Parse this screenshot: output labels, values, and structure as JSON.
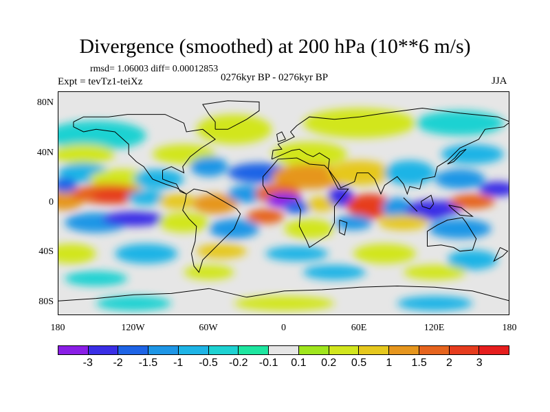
{
  "title": "Divergence (smoothed) at 200 hPa (10**6 m/s)",
  "stats": "rmsd= 1.06003 diff= 0.00012853",
  "experiment": "Expt = tevTz1-teiXz",
  "period": "0276kyr BP - 0276kyr BP",
  "season": "JJA",
  "lat_ticks": [
    "80N",
    "40N",
    "0",
    "40S",
    "80S"
  ],
  "lon_ticks": [
    "180",
    "120W",
    "60W",
    "0",
    "60E",
    "120E",
    "180"
  ],
  "colorbar": {
    "labels": [
      "-3",
      "-2",
      "-1.5",
      "-1",
      "-0.5",
      "-0.2",
      "-0.1",
      "0.1",
      "0.2",
      "0.5",
      "1",
      "1.5",
      "2",
      "3"
    ],
    "colors": [
      "#8a1ee6",
      "#3a2ee6",
      "#1e64e6",
      "#1e96e6",
      "#1eb4e6",
      "#1ed2d2",
      "#1ee6a0",
      "#e6e6e6",
      "#a0e61e",
      "#d2e61e",
      "#e6c81e",
      "#e6961e",
      "#e6641e",
      "#e63c1e",
      "#e61e1e"
    ]
  },
  "chart_data": {
    "type": "heatmap",
    "title": "Divergence (smoothed) at 200 hPa (10**6 m/s)",
    "projection": "cylindrical equidistant",
    "lon_range": [
      -180,
      180
    ],
    "lat_range": [
      -90,
      90
    ],
    "levels": [
      -3,
      -2,
      -1.5,
      -1,
      -0.5,
      -0.2,
      -0.1,
      0.1,
      0.2,
      0.5,
      1,
      1.5,
      2,
      3
    ],
    "features": [
      {
        "name": "convergence over West Africa",
        "lon": 0,
        "lat": 3,
        "value": -3
      },
      {
        "name": "divergence north Africa / Arabia",
        "lon": 15,
        "lat": 18,
        "value": 2
      },
      {
        "name": "divergence Indian Ocean",
        "lon": 70,
        "lat": -5,
        "value": 3
      },
      {
        "name": "convergence east Africa",
        "lon": 45,
        "lat": 10,
        "value": -2
      },
      {
        "name": "convergence Maritime Continent",
        "lon": 115,
        "lat": -5,
        "value": -2
      },
      {
        "name": "divergence Western Pacific",
        "lon": 150,
        "lat": 2,
        "value": 2
      },
      {
        "name": "divergence Central Pacific",
        "lon": -140,
        "lat": 10,
        "value": 3
      },
      {
        "name": "convergence Eastern Pacific",
        "lon": -120,
        "lat": -10,
        "value": -2
      },
      {
        "name": "convergence Atlantic",
        "lon": -30,
        "lat": 15,
        "value": -1.5
      },
      {
        "name": "divergence South America",
        "lon": -50,
        "lat": -5,
        "value": 1.5
      },
      {
        "name": "convergence NW Pacific",
        "lon": 165,
        "lat": 15,
        "value": -2
      },
      {
        "name": "divergence Eurasia",
        "lon": 40,
        "lat": 45,
        "value": 1
      }
    ]
  }
}
